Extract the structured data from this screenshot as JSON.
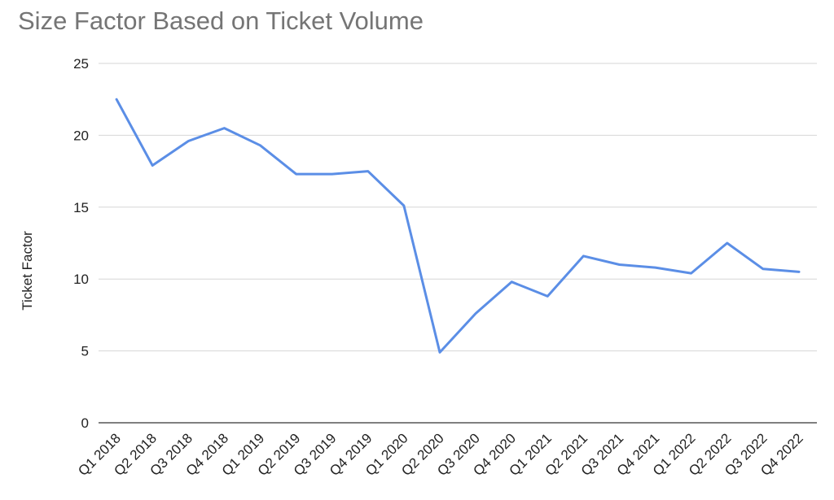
{
  "chart_data": {
    "type": "line",
    "title": "Size Factor Based on Ticket Volume",
    "xlabel": "",
    "ylabel": "Ticket Factor",
    "ylim": [
      0,
      25
    ],
    "yticks": [
      0,
      5,
      10,
      15,
      20,
      25
    ],
    "grid": true,
    "legend": "none",
    "categories": [
      "Q1 2018",
      "Q2 2018",
      "Q3 2018",
      "Q4 2018",
      "Q1 2019",
      "Q2 2019",
      "Q3 2019",
      "Q4 2019",
      "Q1 2020",
      "Q2 2020",
      "Q3 2020",
      "Q4 2020",
      "Q1 2021",
      "Q2 2021",
      "Q3 2021",
      "Q4 2021",
      "Q1 2022",
      "Q2 2022",
      "Q3 2022",
      "Q4 2022"
    ],
    "series": [
      {
        "color": "#5b8ee6",
        "values": [
          22.5,
          17.9,
          19.6,
          20.5,
          19.3,
          17.3,
          17.3,
          17.5,
          15.1,
          4.9,
          7.6,
          9.8,
          8.8,
          11.6,
          11.0,
          10.8,
          10.4,
          12.5,
          10.7,
          10.5
        ]
      }
    ]
  }
}
